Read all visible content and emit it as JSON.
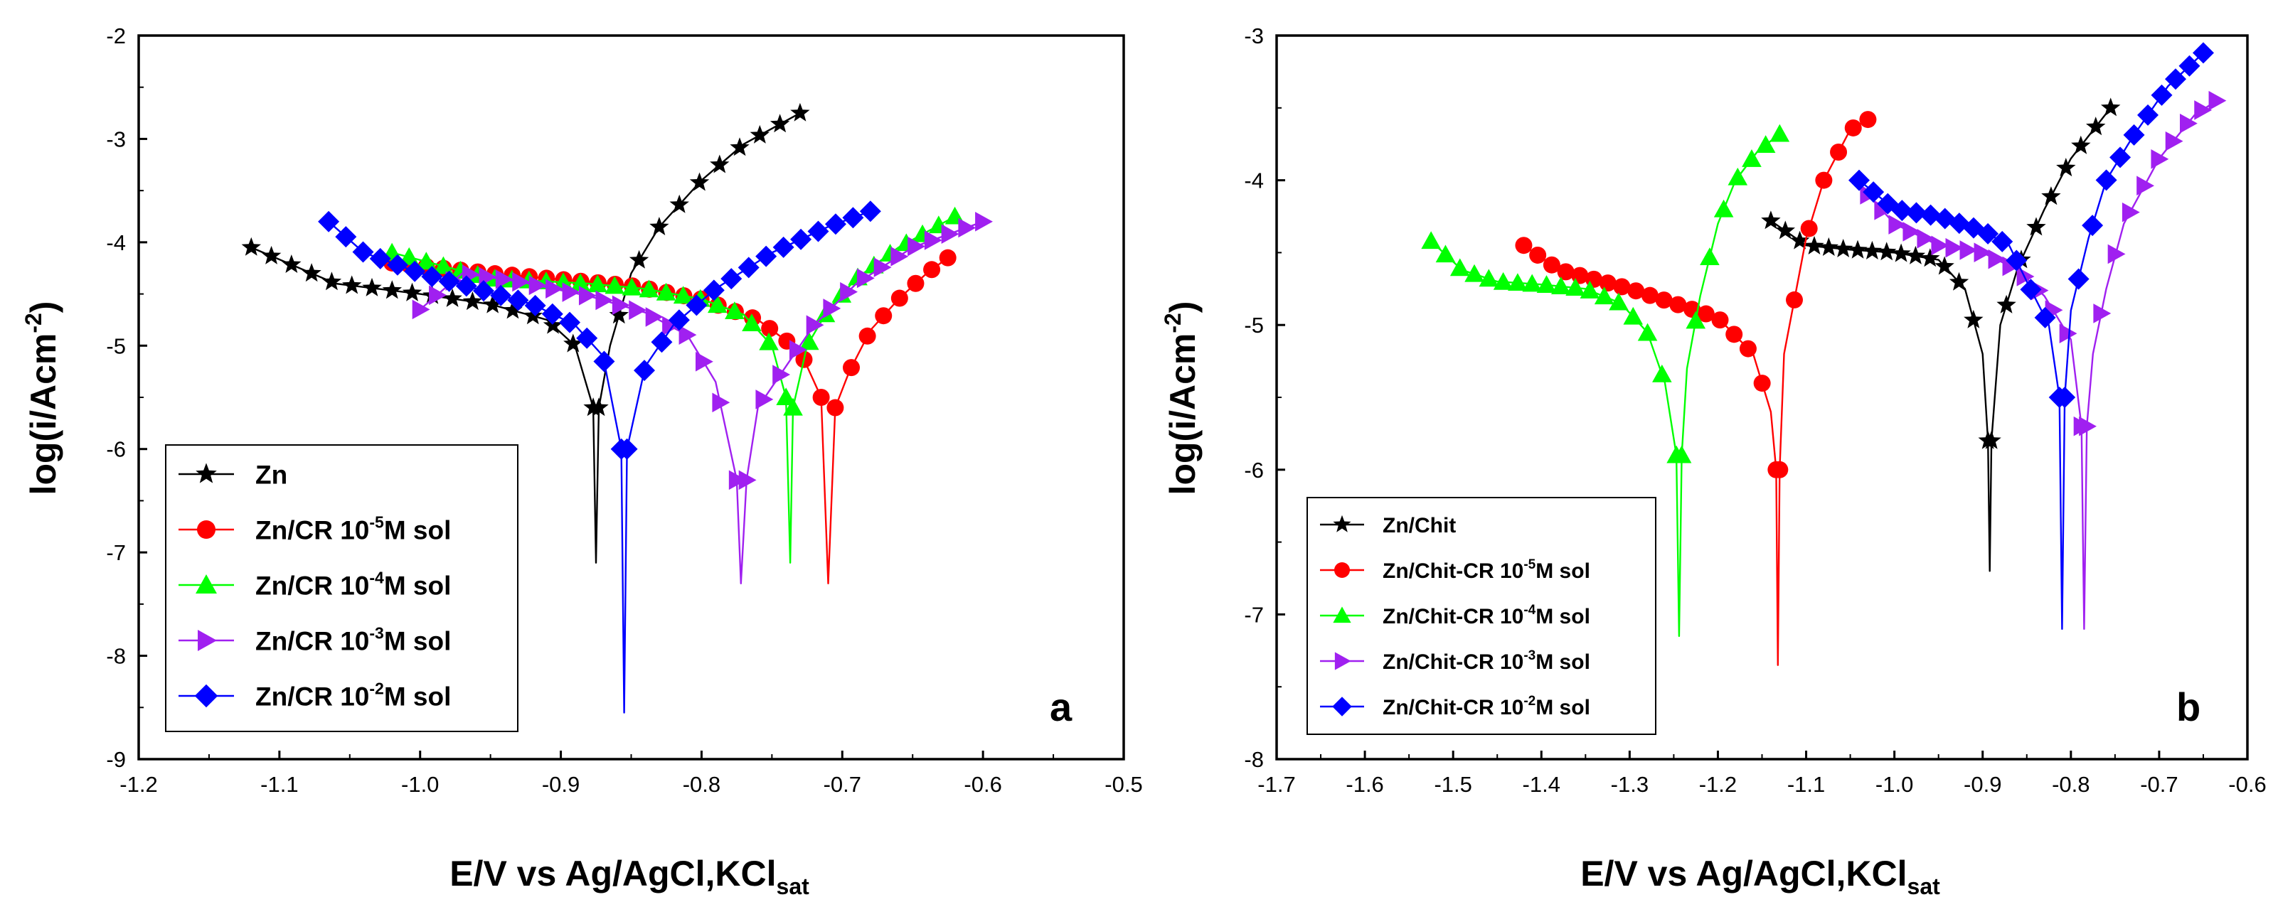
{
  "chart_data": [
    {
      "type": "line",
      "panel_label": "a",
      "xlabel": "E/V vs Ag/AgCl,KCl",
      "xlabel_sub": "sat",
      "ylabel": "log(i/Acm",
      "ylabel_sup": "-2",
      "ylabel_end": ")",
      "xlim": [
        -1.2,
        -0.5
      ],
      "ylim": [
        -9,
        -2
      ],
      "xticks": [
        "-1.2",
        "-1.1",
        "-1.0",
        "-0.9",
        "-0.8",
        "-0.7",
        "-0.6",
        "-0.5"
      ],
      "yticks": [
        "-9",
        "-8",
        "-7",
        "-6",
        "-5",
        "-4",
        "-3",
        "-2"
      ],
      "legend_position": "bottom-left",
      "series": [
        {
          "name": "Zn",
          "color": "#000000",
          "marker": "star",
          "legend_parts": [
            "Zn"
          ],
          "ecorr": -0.875,
          "min": -7.1,
          "step": 0.012,
          "marker_every": 0.014,
          "cathodic": [
            [
              -1.12,
              -4.05
            ],
            [
              -1.06,
              -4.4
            ],
            [
              -1.0,
              -4.5
            ],
            [
              -0.95,
              -4.6
            ],
            [
              -0.91,
              -4.75
            ],
            [
              -0.89,
              -5.0
            ],
            [
              -0.877,
              -5.6
            ]
          ],
          "anodic": [
            [
              -0.873,
              -5.6
            ],
            [
              -0.865,
              -5.0
            ],
            [
              -0.85,
              -4.3
            ],
            [
              -0.83,
              -3.85
            ],
            [
              -0.8,
              -3.4
            ],
            [
              -0.77,
              -3.05
            ],
            [
              -0.73,
              -2.75
            ]
          ]
        },
        {
          "name": "Zn/CR 10-5M sol",
          "color": "#ff0000",
          "marker": "circle",
          "legend_parts": [
            "Zn/CR 10",
            "-5",
            "M sol"
          ],
          "ecorr": -0.71,
          "min": -7.3,
          "step": 0.012,
          "marker_every": 0.012,
          "cathodic": [
            [
              -1.02,
              -4.2
            ],
            [
              -0.95,
              -4.3
            ],
            [
              -0.9,
              -4.36
            ],
            [
              -0.85,
              -4.42
            ],
            [
              -0.8,
              -4.55
            ],
            [
              -0.76,
              -4.75
            ],
            [
              -0.73,
              -5.05
            ],
            [
              -0.715,
              -5.5
            ]
          ],
          "anodic": [
            [
              -0.705,
              -5.6
            ],
            [
              -0.695,
              -5.25
            ],
            [
              -0.68,
              -4.85
            ],
            [
              -0.66,
              -4.55
            ],
            [
              -0.64,
              -4.3
            ],
            [
              -0.625,
              -4.15
            ]
          ]
        },
        {
          "name": "Zn/CR 10-4M sol",
          "color": "#00ff00",
          "marker": "triangle-up",
          "legend_parts": [
            "Zn/CR 10",
            "-4",
            "M sol"
          ],
          "ecorr": -0.737,
          "min": -7.1,
          "step": 0.012,
          "marker_every": 0.012,
          "cathodic": [
            [
              -1.02,
              -4.1
            ],
            [
              -0.95,
              -4.35
            ],
            [
              -0.88,
              -4.4
            ],
            [
              -0.84,
              -4.45
            ],
            [
              -0.8,
              -4.55
            ],
            [
              -0.77,
              -4.7
            ],
            [
              -0.75,
              -5.0
            ],
            [
              -0.74,
              -5.5
            ]
          ],
          "anodic": [
            [
              -0.735,
              -5.6
            ],
            [
              -0.725,
              -5.0
            ],
            [
              -0.71,
              -4.65
            ],
            [
              -0.69,
              -4.35
            ],
            [
              -0.66,
              -4.05
            ],
            [
              -0.62,
              -3.75
            ]
          ]
        },
        {
          "name": "Zn/CR 10-3M sol",
          "color": "#a020f0",
          "marker": "triangle-right",
          "legend_parts": [
            "Zn/CR 10",
            "-3",
            "M sol"
          ],
          "ecorr": -0.772,
          "min": -7.3,
          "step": 0.012,
          "marker_every": 0.012,
          "cathodic": [
            [
              -1.0,
              -4.65
            ],
            [
              -0.97,
              -4.3
            ],
            [
              -0.93,
              -4.38
            ],
            [
              -0.88,
              -4.52
            ],
            [
              -0.84,
              -4.68
            ],
            [
              -0.81,
              -4.9
            ],
            [
              -0.79,
              -5.35
            ],
            [
              -0.775,
              -6.3
            ]
          ],
          "anodic": [
            [
              -0.768,
              -6.3
            ],
            [
              -0.76,
              -5.6
            ],
            [
              -0.74,
              -5.2
            ],
            [
              -0.72,
              -4.8
            ],
            [
              -0.69,
              -4.4
            ],
            [
              -0.65,
              -4.05
            ],
            [
              -0.6,
              -3.8
            ]
          ]
        },
        {
          "name": "Zn/CR 10-2M sol",
          "color": "#0000ff",
          "marker": "diamond",
          "legend_parts": [
            "Zn/CR 10",
            "-2",
            "M sol"
          ],
          "ecorr": -0.855,
          "min": -8.55,
          "step": 0.012,
          "marker_every": 0.012,
          "cathodic": [
            [
              -1.065,
              -3.8
            ],
            [
              -1.04,
              -4.1
            ],
            [
              -1.0,
              -4.3
            ],
            [
              -0.96,
              -4.45
            ],
            [
              -0.92,
              -4.6
            ],
            [
              -0.89,
              -4.8
            ],
            [
              -0.87,
              -5.1
            ],
            [
              -0.857,
              -6.0
            ]
          ],
          "anodic": [
            [
              -0.853,
              -6.0
            ],
            [
              -0.84,
              -5.2
            ],
            [
              -0.82,
              -4.8
            ],
            [
              -0.79,
              -4.45
            ],
            [
              -0.75,
              -4.1
            ],
            [
              -0.71,
              -3.85
            ],
            [
              -0.68,
              -3.7
            ]
          ]
        }
      ]
    },
    {
      "type": "line",
      "panel_label": "b",
      "xlabel": "E/V vs Ag/AgCl,KCl",
      "xlabel_sub": "sat",
      "ylabel": "log(i/Acm",
      "ylabel_sup": "-2",
      "ylabel_end": ")",
      "xlim": [
        -1.7,
        -0.6
      ],
      "ylim": [
        -8,
        -3
      ],
      "xticks": [
        "-1.7",
        "-1.6",
        "-1.5",
        "-1.4",
        "-1.3",
        "-1.2",
        "-1.1",
        "-1.0",
        "-0.9",
        "-0.8",
        "-0.7",
        "-0.6"
      ],
      "yticks": [
        "-8",
        "-7",
        "-6",
        "-5",
        "-4",
        "-3"
      ],
      "legend_position": "bottom-left",
      "series": [
        {
          "name": "Zn/Chit",
          "color": "#000000",
          "marker": "star",
          "legend_parts": [
            "Zn/Chit"
          ],
          "ecorr": -0.892,
          "min": -6.7,
          "step": 0.016,
          "marker_every": 0.016,
          "cathodic": [
            [
              -1.14,
              -4.28
            ],
            [
              -1.1,
              -4.45
            ],
            [
              -1.05,
              -4.48
            ],
            [
              -1.0,
              -4.5
            ],
            [
              -0.95,
              -4.55
            ],
            [
              -0.92,
              -4.75
            ],
            [
              -0.9,
              -5.2
            ],
            [
              -0.894,
              -5.8
            ]
          ],
          "anodic": [
            [
              -0.89,
              -5.8
            ],
            [
              -0.88,
              -5.0
            ],
            [
              -0.86,
              -4.6
            ],
            [
              -0.83,
              -4.2
            ],
            [
              -0.8,
              -3.85
            ],
            [
              -0.755,
              -3.5
            ]
          ]
        },
        {
          "name": "Zn/Chit-CR 10-5M sol",
          "color": "#ff0000",
          "marker": "circle",
          "legend_parts": [
            "Zn/Chit-CR 10",
            "-5",
            "M sol"
          ],
          "ecorr": -1.132,
          "min": -7.35,
          "step": 0.016,
          "marker_every": 0.016,
          "cathodic": [
            [
              -1.42,
              -4.45
            ],
            [
              -1.38,
              -4.62
            ],
            [
              -1.3,
              -4.75
            ],
            [
              -1.25,
              -4.85
            ],
            [
              -1.2,
              -4.95
            ],
            [
              -1.16,
              -5.2
            ],
            [
              -1.14,
              -5.6
            ],
            [
              -1.134,
              -6.0
            ]
          ],
          "anodic": [
            [
              -1.13,
              -6.0
            ],
            [
              -1.125,
              -5.2
            ],
            [
              -1.1,
              -4.4
            ],
            [
              -1.08,
              -4.0
            ],
            [
              -1.05,
              -3.65
            ],
            [
              -1.03,
              -3.58
            ]
          ]
        },
        {
          "name": "Zn/Chit-CR 10-4M sol",
          "color": "#00ff00",
          "marker": "triangle-up",
          "legend_parts": [
            "Zn/Chit-CR 10",
            "-4",
            "M sol"
          ],
          "ecorr": -1.244,
          "min": -7.15,
          "step": 0.016,
          "marker_every": 0.016,
          "cathodic": [
            [
              -1.525,
              -4.42
            ],
            [
              -1.49,
              -4.62
            ],
            [
              -1.45,
              -4.7
            ],
            [
              -1.4,
              -4.72
            ],
            [
              -1.35,
              -4.75
            ],
            [
              -1.31,
              -4.85
            ],
            [
              -1.28,
              -5.05
            ],
            [
              -1.26,
              -5.4
            ],
            [
              -1.247,
              -5.9
            ]
          ],
          "anodic": [
            [
              -1.241,
              -5.9
            ],
            [
              -1.235,
              -5.3
            ],
            [
              -1.22,
              -4.8
            ],
            [
              -1.2,
              -4.3
            ],
            [
              -1.18,
              -4.0
            ],
            [
              -1.155,
              -3.8
            ],
            [
              -1.13,
              -3.68
            ]
          ]
        },
        {
          "name": "Zn/Chit-CR 10-3M sol",
          "color": "#a020f0",
          "marker": "triangle-right",
          "legend_parts": [
            "Zn/Chit-CR 10",
            "-3",
            "M sol"
          ],
          "ecorr": -0.785,
          "min": -7.1,
          "step": 0.016,
          "marker_every": 0.016,
          "cathodic": [
            [
              -1.03,
              -4.1
            ],
            [
              -1.0,
              -4.3
            ],
            [
              -0.95,
              -4.45
            ],
            [
              -0.9,
              -4.5
            ],
            [
              -0.86,
              -4.62
            ],
            [
              -0.83,
              -4.8
            ],
            [
              -0.8,
              -5.1
            ],
            [
              -0.788,
              -5.7
            ]
          ],
          "anodic": [
            [
              -0.782,
              -5.7
            ],
            [
              -0.775,
              -5.2
            ],
            [
              -0.76,
              -4.75
            ],
            [
              -0.74,
              -4.3
            ],
            [
              -0.7,
              -3.85
            ],
            [
              -0.66,
              -3.55
            ],
            [
              -0.635,
              -3.45
            ]
          ]
        },
        {
          "name": "Zn/Chit-CR 10-2M sol",
          "color": "#0000ff",
          "marker": "diamond",
          "legend_parts": [
            "Zn/Chit-CR 10",
            "-2",
            "M sol"
          ],
          "ecorr": -0.81,
          "min": -7.1,
          "step": 0.016,
          "marker_every": 0.016,
          "cathodic": [
            [
              -1.04,
              -4.0
            ],
            [
              -1.0,
              -4.2
            ],
            [
              -0.95,
              -4.25
            ],
            [
              -0.9,
              -4.35
            ],
            [
              -0.87,
              -4.45
            ],
            [
              -0.85,
              -4.7
            ],
            [
              -0.825,
              -5.0
            ],
            [
              -0.813,
              -5.5
            ]
          ],
          "anodic": [
            [
              -0.807,
              -5.5
            ],
            [
              -0.8,
              -4.9
            ],
            [
              -0.78,
              -4.4
            ],
            [
              -0.76,
              -4.0
            ],
            [
              -0.73,
              -3.7
            ],
            [
              -0.69,
              -3.35
            ],
            [
              -0.65,
              -3.12
            ]
          ]
        }
      ]
    }
  ]
}
